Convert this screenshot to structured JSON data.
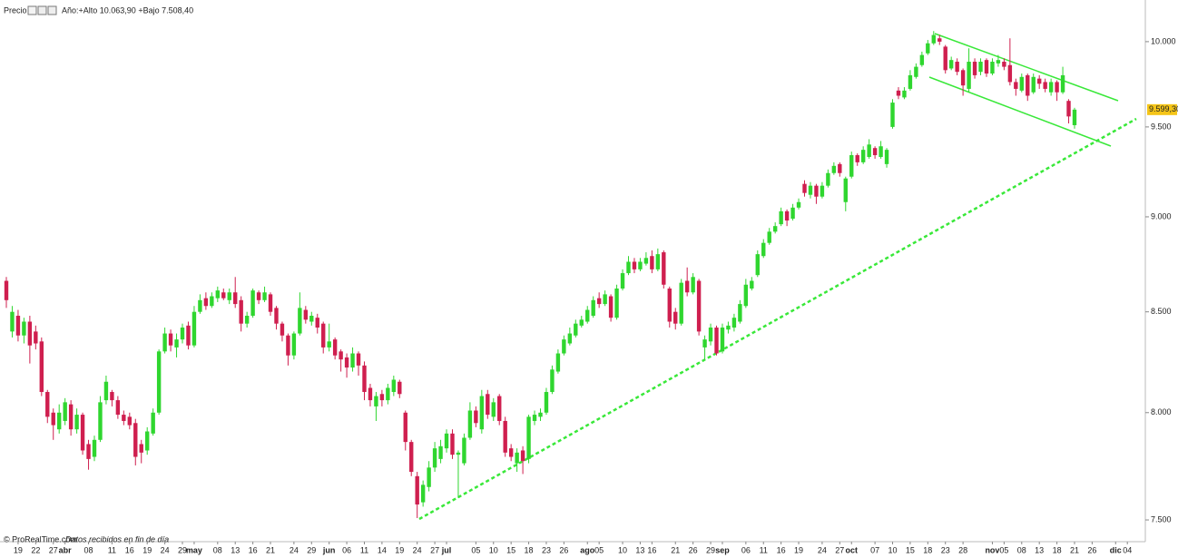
{
  "chart_data": {
    "type": "candlestick",
    "title": "Precio",
    "subtitle": "Año:+Alto 10.063,90 +Bajo 7.508,40",
    "footer_brand": "© ProRealTime.com",
    "footer_note": "Datos recibidos en fin de día",
    "last_price_label": "9.599,30",
    "log_scale": true,
    "grid": false,
    "up_color": "#2fd62f",
    "down_color": "#cf1f4f",
    "ylim": [
      7439,
      10209
    ],
    "yticks": [
      {
        "value": 7500,
        "label": "7.500"
      },
      {
        "value": 8000,
        "label": "8.000"
      },
      {
        "value": 8500,
        "label": "8.500"
      },
      {
        "value": 9000,
        "label": "9.000"
      },
      {
        "value": 9500,
        "label": "9.500"
      },
      {
        "value": 10000,
        "label": "10.000"
      }
    ],
    "categories": [
      null,
      null,
      "19",
      null,
      null,
      "22",
      null,
      null,
      "27",
      null,
      "abr",
      null,
      null,
      null,
      "08",
      null,
      null,
      null,
      "11",
      null,
      null,
      "16",
      null,
      null,
      "19",
      null,
      null,
      "24",
      null,
      null,
      "29",
      null,
      "may",
      null,
      null,
      null,
      "08",
      null,
      null,
      "13",
      null,
      null,
      "16",
      null,
      null,
      "21",
      null,
      null,
      null,
      "24",
      null,
      null,
      "29",
      null,
      null,
      "jun",
      null,
      null,
      "06",
      null,
      null,
      "11",
      null,
      null,
      "14",
      null,
      null,
      "19",
      null,
      null,
      "24",
      null,
      null,
      "27",
      null,
      "jul",
      null,
      null,
      null,
      null,
      "05",
      null,
      null,
      "10",
      null,
      null,
      "15",
      null,
      null,
      "18",
      null,
      null,
      "23",
      null,
      null,
      "26",
      null,
      null,
      null,
      "ago",
      null,
      "05",
      null,
      null,
      null,
      "10",
      null,
      null,
      "13",
      null,
      "16",
      null,
      null,
      null,
      "21",
      null,
      null,
      "26",
      null,
      null,
      "29",
      null,
      "sep",
      null,
      null,
      null,
      "06",
      null,
      null,
      "11",
      null,
      null,
      "16",
      null,
      null,
      "19",
      null,
      null,
      null,
      "24",
      null,
      null,
      "27",
      null,
      "oct",
      null,
      null,
      null,
      "07",
      null,
      null,
      "10",
      null,
      null,
      "15",
      null,
      null,
      "18",
      null,
      null,
      "23",
      null,
      null,
      "28",
      null,
      null,
      null,
      null,
      "nov",
      null,
      "05",
      null,
      null,
      "08",
      null,
      null,
      "13",
      null,
      null,
      "18",
      null,
      null,
      "21",
      null,
      null,
      "26",
      null,
      null,
      null,
      "dic",
      null,
      "04"
    ],
    "open": [
      8660,
      8400,
      8480,
      8380,
      8450,
      8400,
      8350,
      8100,
      8000,
      7920,
      7960,
      8040,
      7920,
      7990,
      7850,
      7790,
      7870,
      8060,
      8100,
      8060,
      7990,
      7980,
      7950,
      7850,
      7820,
      7900,
      8000,
      8300,
      8390,
      8320,
      8360,
      8430,
      8330,
      8500,
      8570,
      8530,
      8570,
      8600,
      8560,
      8600,
      8560,
      8440,
      8480,
      8600,
      8560,
      8590,
      8520,
      8440,
      8380,
      8280,
      8390,
      8510,
      8450,
      8470,
      8440,
      8320,
      8360,
      8300,
      8270,
      8220,
      8290,
      8230,
      8120,
      8030,
      8090,
      8060,
      8100,
      8150,
      8000,
      7860,
      7700,
      7580,
      7650,
      7740,
      7780,
      7830,
      7900,
      7800,
      7760,
      7880,
      8010,
      7920,
      8090,
      7980,
      8080,
      7960,
      7830,
      7760,
      7820,
      7780,
      7960,
      7980,
      8000,
      8100,
      8200,
      8290,
      8340,
      8380,
      8430,
      8450,
      8480,
      8570,
      8540,
      8580,
      8470,
      8620,
      8700,
      8760,
      8720,
      8750,
      8790,
      8720,
      8810,
      8620,
      8500,
      8440,
      8660,
      8600,
      8660,
      8320,
      8350,
      8420,
      8300,
      8410,
      8420,
      8450,
      8530,
      8620,
      8690,
      8790,
      8860,
      8920,
      8960,
      9030,
      8990,
      9050,
      9180,
      9120,
      9170,
      9110,
      9170,
      9240,
      9290,
      9080,
      9220,
      9340,
      9300,
      9330,
      9380,
      9330,
      9290,
      9500,
      9710,
      9670,
      9720,
      9790,
      9860,
      9930,
      9990,
      10020,
      9970,
      9840,
      9880,
      9830,
      9720,
      9880,
      9820,
      9890,
      9810,
      9870,
      9880,
      9860,
      9760,
      9710,
      9800,
      9700,
      9780,
      9760,
      9700,
      9760,
      9700,
      9650,
      9510,
      null,
      null,
      null,
      null,
      null,
      null,
      null,
      null,
      null
    ],
    "high": [
      8680,
      8530,
      8510,
      8470,
      8480,
      8430,
      8370,
      8110,
      8020,
      8040,
      8070,
      8060,
      8020,
      8000,
      7870,
      7890,
      8080,
      8180,
      8110,
      8080,
      8010,
      8000,
      7970,
      7870,
      7930,
      8020,
      8310,
      8420,
      8410,
      8390,
      8440,
      8450,
      8530,
      8590,
      8600,
      8600,
      8630,
      8620,
      8620,
      8680,
      8580,
      8500,
      8620,
      8610,
      8630,
      8600,
      8530,
      8450,
      8390,
      8400,
      8600,
      8530,
      8500,
      8490,
      8450,
      8440,
      8370,
      8310,
      8290,
      8320,
      8300,
      8250,
      8140,
      8100,
      8110,
      8140,
      8180,
      8160,
      8010,
      7870,
      7720,
      7680,
      7770,
      7860,
      7870,
      7920,
      7920,
      7820,
      7900,
      8050,
      8030,
      8110,
      8110,
      8070,
      8090,
      7980,
      7850,
      7830,
      7840,
      7990,
      8010,
      8020,
      8120,
      8230,
      8310,
      8380,
      8420,
      8460,
      8480,
      8530,
      8580,
      8600,
      8610,
      8590,
      8640,
      8720,
      8790,
      8780,
      8780,
      8810,
      8820,
      8830,
      8820,
      8630,
      8520,
      8670,
      8730,
      8700,
      8670,
      8380,
      8440,
      8430,
      8440,
      8450,
      8490,
      8560,
      8670,
      8680,
      8820,
      8880,
      8940,
      8970,
      9050,
      9040,
      9070,
      9100,
      9200,
      9190,
      9180,
      9190,
      9260,
      9300,
      9300,
      9220,
      9360,
      9350,
      9390,
      9430,
      9390,
      9420,
      9380,
      9660,
      9730,
      9730,
      9830,
      9870,
      9940,
      10010,
      10063.9,
      10040,
      9980,
      9910,
      9900,
      9840,
      9960,
      9900,
      9900,
      9900,
      9900,
      9920,
      9900,
      10020,
      9780,
      9810,
      9810,
      9810,
      9800,
      9780,
      9780,
      9770,
      9850,
      9660,
      9610,
      null,
      null,
      null,
      null,
      null,
      null,
      null,
      null,
      null
    ],
    "low": [
      8520,
      8370,
      8350,
      8340,
      8240,
      8310,
      8080,
      7950,
      7870,
      7900,
      7940,
      7890,
      7900,
      7800,
      7730,
      7770,
      7860,
      8040,
      8030,
      7970,
      7940,
      7920,
      7750,
      7760,
      7800,
      7890,
      7990,
      8290,
      8300,
      8270,
      8340,
      8310,
      8320,
      8490,
      8510,
      8520,
      8550,
      8560,
      8540,
      8520,
      8400,
      8420,
      8470,
      8540,
      8550,
      8480,
      8410,
      8350,
      8230,
      8260,
      8380,
      8440,
      8430,
      8390,
      8290,
      8300,
      8260,
      8200,
      8170,
      8200,
      8180,
      8060,
      8030,
      7960,
      8030,
      8040,
      8080,
      8070,
      7820,
      7700,
      7508.4,
      7560,
      7630,
      7720,
      7760,
      7810,
      7780,
      7600,
      7750,
      7870,
      7930,
      7900,
      7970,
      7960,
      7940,
      7790,
      7770,
      7720,
      7710,
      7760,
      7940,
      7960,
      7990,
      8090,
      8190,
      8280,
      8330,
      8370,
      8420,
      8440,
      8470,
      8520,
      8530,
      8450,
      8460,
      8610,
      8690,
      8700,
      8710,
      8740,
      8700,
      8710,
      8620,
      8420,
      8410,
      8430,
      8580,
      8590,
      8380,
      8260,
      8330,
      8280,
      8290,
      8390,
      8400,
      8440,
      8520,
      8610,
      8680,
      8780,
      8850,
      8910,
      8950,
      8950,
      8980,
      9040,
      9110,
      9100,
      9070,
      9100,
      9160,
      9230,
      9220,
      9030,
      9210,
      9280,
      9290,
      9320,
      9320,
      9320,
      9270,
      9490,
      9660,
      9660,
      9710,
      9780,
      9850,
      9920,
      9980,
      9980,
      9810,
      9830,
      9800,
      9680,
      9700,
      9780,
      9800,
      9790,
      9800,
      9850,
      9830,
      9740,
      9680,
      9700,
      9650,
      9690,
      9720,
      9700,
      9680,
      9650,
      9690,
      9520,
      9490,
      null,
      null,
      null,
      null,
      null,
      null,
      null,
      null,
      null
    ],
    "close": [
      8560,
      8500,
      8380,
      8450,
      8330,
      8340,
      8100,
      7980,
      7940,
      8000,
      8050,
      7920,
      7990,
      7820,
      7780,
      7870,
      8050,
      8150,
      8060,
      7990,
      7960,
      7940,
      7790,
      7810,
      7910,
      8000,
      8300,
      8390,
      8330,
      8360,
      8420,
      8330,
      8500,
      8560,
      8530,
      8580,
      8610,
      8570,
      8600,
      8540,
      8440,
      8480,
      8610,
      8560,
      8600,
      8500,
      8440,
      8380,
      8280,
      8390,
      8520,
      8460,
      8480,
      8420,
      8320,
      8350,
      8280,
      8260,
      8220,
      8290,
      8230,
      8100,
      8060,
      8080,
      8060,
      8120,
      8160,
      8090,
      7860,
      7720,
      7570,
      7660,
      7740,
      7830,
      7840,
      7900,
      7800,
      7810,
      7880,
      8010,
      7950,
      8080,
      7990,
      8050,
      7960,
      7810,
      7790,
      7810,
      7770,
      7980,
      7990,
      8000,
      8100,
      8210,
      8290,
      8360,
      8390,
      8440,
      8460,
      8510,
      8560,
      8540,
      8590,
      8470,
      8620,
      8700,
      8760,
      8720,
      8760,
      8780,
      8720,
      8800,
      8640,
      8450,
      8440,
      8650,
      8600,
      8680,
      8400,
      8360,
      8420,
      8290,
      8420,
      8430,
      8470,
      8540,
      8640,
      8660,
      8800,
      8860,
      8920,
      8950,
      9030,
      8980,
      9050,
      9080,
      9130,
      9170,
      9110,
      9170,
      9240,
      9280,
      9240,
      9210,
      9340,
      9300,
      9370,
      9400,
      9340,
      9390,
      9370,
      9640,
      9680,
      9710,
      9800,
      9850,
      9920,
      9990,
      10040,
      10000,
      9830,
      9890,
      9820,
      9740,
      9880,
      9800,
      9880,
      9810,
      9880,
      9890,
      9850,
      9760,
      9720,
      9790,
      9680,
      9790,
      9750,
      9720,
      9760,
      9700,
      9800,
      9560,
      9599.3,
      null,
      null,
      null,
      null,
      null,
      null,
      null,
      null,
      null
    ]
  }
}
